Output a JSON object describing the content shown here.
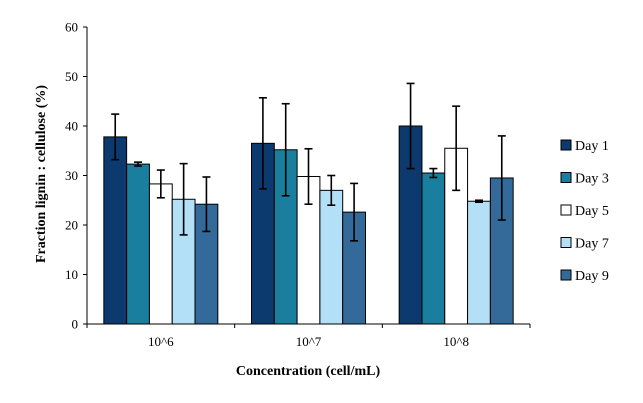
{
  "chart_data": {
    "type": "bar",
    "title": "",
    "xlabel": "Concentration (cell/mL)",
    "ylabel": "Fraction lignin : cellulose (%)",
    "ylim": [
      0,
      60
    ],
    "yticks": [
      0,
      10,
      20,
      30,
      40,
      50,
      60
    ],
    "categories": [
      "10^6",
      "10^7",
      "10^8"
    ],
    "grid": false,
    "legend_position": "right",
    "series": [
      {
        "name": "Day 1",
        "color": "#0d3a6e",
        "values": [
          37.8,
          36.5,
          40.0
        ],
        "errors": [
          4.6,
          9.2,
          8.6
        ]
      },
      {
        "name": "Day 3",
        "color": "#1a7f9e",
        "values": [
          32.3,
          35.2,
          30.5
        ],
        "errors": [
          0.4,
          9.3,
          0.9
        ]
      },
      {
        "name": "Day 5",
        "color": "#ffffff",
        "values": [
          28.3,
          29.8,
          35.5
        ],
        "errors": [
          2.8,
          5.6,
          8.5
        ]
      },
      {
        "name": "Day 7",
        "color": "#b3e0f7",
        "values": [
          25.2,
          27.0,
          24.8
        ],
        "errors": [
          7.2,
          3.0,
          0.2
        ]
      },
      {
        "name": "Day 9",
        "color": "#336a9a",
        "values": [
          24.2,
          22.6,
          29.5
        ],
        "errors": [
          5.5,
          5.8,
          8.5
        ]
      }
    ]
  }
}
